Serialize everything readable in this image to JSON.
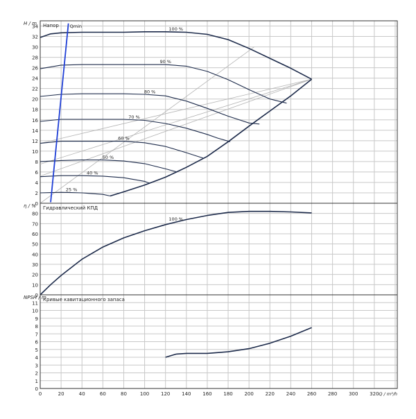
{
  "colors": {
    "grid": "#c8c8c8",
    "frame": "#333333",
    "curve": "#1c2a4a",
    "aux": "#b4b4b4",
    "qmin": "#1f3fd6",
    "text": "#222222"
  },
  "chart_data": [
    {
      "type": "line",
      "panel": "head",
      "ylabel": "H / m",
      "title": "Напор",
      "ylim": [
        0,
        35
      ],
      "yticks": [
        0,
        2,
        4,
        6,
        8,
        10,
        12,
        14,
        16,
        18,
        20,
        22,
        24,
        26,
        28,
        30,
        32,
        34
      ],
      "grid": true,
      "series": [
        {
          "name": "100 %",
          "x": [
            0,
            10,
            20,
            40,
            60,
            80,
            100,
            120,
            140,
            160,
            180,
            200,
            220,
            240,
            260
          ],
          "y": [
            31.8,
            32.5,
            32.7,
            32.8,
            32.8,
            32.8,
            32.9,
            32.9,
            32.8,
            32.4,
            31.4,
            29.7,
            27.8,
            25.9,
            23.8
          ]
        },
        {
          "name": "90 %",
          "x": [
            0,
            20,
            40,
            60,
            80,
            100,
            120,
            140,
            160,
            180,
            200,
            220,
            236
          ],
          "y": [
            25.8,
            26.5,
            26.6,
            26.6,
            26.6,
            26.6,
            26.6,
            26.3,
            25.3,
            23.7,
            21.8,
            20.0,
            19.2
          ]
        },
        {
          "name": "80 %",
          "x": [
            0,
            20,
            40,
            60,
            80,
            100,
            120,
            140,
            160,
            180,
            200,
            210
          ],
          "y": [
            20.5,
            20.9,
            21.0,
            21.0,
            21.0,
            20.9,
            20.6,
            19.6,
            18.2,
            16.7,
            15.4,
            15.2
          ]
        },
        {
          "name": "70 %",
          "x": [
            0,
            20,
            40,
            60,
            80,
            100,
            120,
            140,
            160,
            170,
            182
          ],
          "y": [
            15.7,
            16.1,
            16.1,
            16.1,
            16.1,
            15.9,
            15.3,
            14.4,
            13.2,
            12.5,
            11.8
          ]
        },
        {
          "name": "60 %",
          "x": [
            0,
            20,
            40,
            60,
            80,
            100,
            120,
            140,
            157
          ],
          "y": [
            11.5,
            11.9,
            11.9,
            11.9,
            11.9,
            11.6,
            10.9,
            9.7,
            8.6
          ]
        },
        {
          "name": "50 %",
          "x": [
            0,
            20,
            40,
            60,
            80,
            100,
            120,
            131
          ],
          "y": [
            8.0,
            8.2,
            8.3,
            8.3,
            8.1,
            7.6,
            6.6,
            6.0
          ]
        },
        {
          "name": "40 %",
          "x": [
            0,
            20,
            40,
            60,
            80,
            100,
            105
          ],
          "y": [
            5.1,
            5.3,
            5.3,
            5.2,
            4.9,
            4.2,
            3.8
          ]
        },
        {
          "name": "25 %",
          "x": [
            0,
            20,
            40,
            60,
            67
          ],
          "y": [
            2.0,
            2.1,
            2.0,
            1.7,
            1.4
          ]
        }
      ],
      "envelope": {
        "x": [
          67,
          80,
          100,
          120,
          140,
          160,
          180,
          200,
          220,
          240,
          260
        ],
        "y": [
          1.4,
          2.2,
          3.5,
          5.0,
          6.9,
          9.0,
          11.8,
          14.8,
          17.7,
          20.6,
          23.8
        ]
      },
      "qmin": {
        "label": "Qmin",
        "x": [
          10,
          27
        ],
        "y": [
          0.2,
          34.5
        ]
      },
      "guides": [
        {
          "x": [
            0,
            205
          ],
          "y": [
            0,
            30.0
          ]
        },
        {
          "x": [
            0,
            260
          ],
          "y": [
            7.5,
            23.8
          ]
        },
        {
          "x": [
            0,
            260
          ],
          "y": [
            11.5,
            23.8
          ]
        },
        {
          "x": [
            0,
            260
          ],
          "y": [
            5.2,
            23.8
          ]
        }
      ]
    },
    {
      "type": "line",
      "panel": "efficiency",
      "ylabel": "η / %",
      "title": "Гидравлический КПД",
      "ylim": [
        0,
        90
      ],
      "yticks": [
        0,
        10,
        20,
        30,
        40,
        50,
        60,
        70,
        80
      ],
      "grid": true,
      "series": [
        {
          "name": "100 %",
          "x": [
            0,
            10,
            20,
            40,
            60,
            80,
            100,
            120,
            140,
            160,
            180,
            200,
            220,
            240,
            260
          ],
          "y": [
            0,
            10,
            19,
            35,
            47,
            56,
            63,
            69,
            74,
            78,
            81,
            82,
            82,
            81.5,
            80.5
          ]
        }
      ]
    },
    {
      "type": "line",
      "panel": "npsh",
      "ylabel": "NPSH / m",
      "title": "Кривые кавитационного запаса",
      "ylim": [
        0,
        12
      ],
      "yticks": [
        0,
        1,
        2,
        3,
        4,
        5,
        6,
        7,
        8,
        9,
        10,
        11
      ],
      "grid": true,
      "series": [
        {
          "name": "",
          "x": [
            120,
            130,
            140,
            160,
            180,
            200,
            220,
            240,
            260
          ],
          "y": [
            4.0,
            4.4,
            4.5,
            4.5,
            4.7,
            5.1,
            5.8,
            6.7,
            7.8
          ]
        }
      ]
    }
  ],
  "xaxis": {
    "label": "Q / m³/h",
    "xlim": [
      0,
      340
    ],
    "xticks": [
      0,
      20,
      40,
      60,
      80,
      100,
      120,
      140,
      160,
      180,
      200,
      220,
      240,
      260,
      280,
      300,
      320
    ]
  }
}
